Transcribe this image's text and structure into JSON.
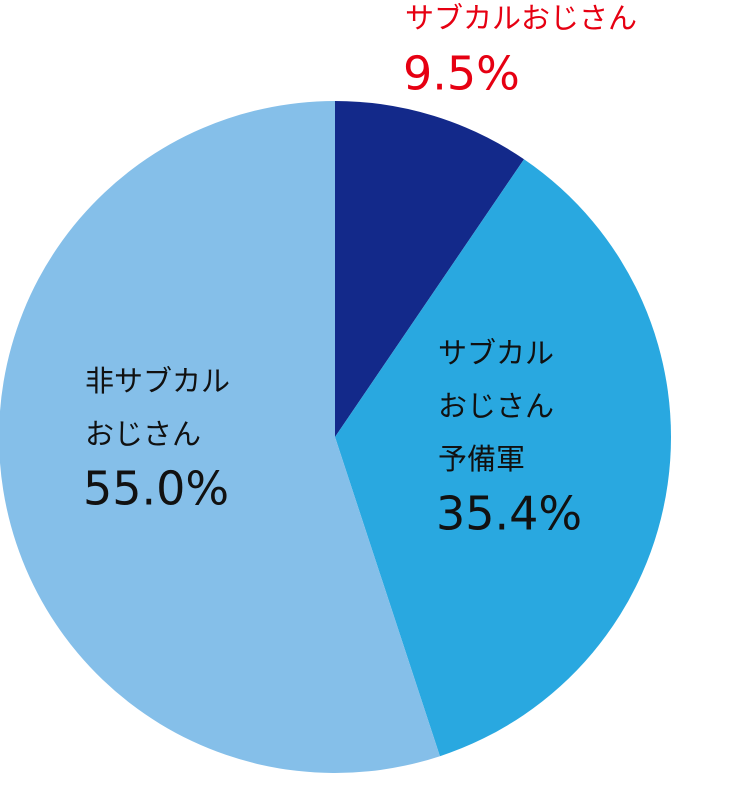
{
  "chart_data": {
    "type": "pie",
    "categories": [
      "サブカルおじさん",
      "サブカル\nおじさん\n予備軍",
      "非サブカル\nおじさん"
    ],
    "values": [
      9.5,
      35.4,
      55.0
    ],
    "value_labels": [
      "9.5%",
      "35.4%",
      "55.0%"
    ],
    "colors": [
      "#13298a",
      "#29a8e0",
      "#85bfe9"
    ]
  }
}
